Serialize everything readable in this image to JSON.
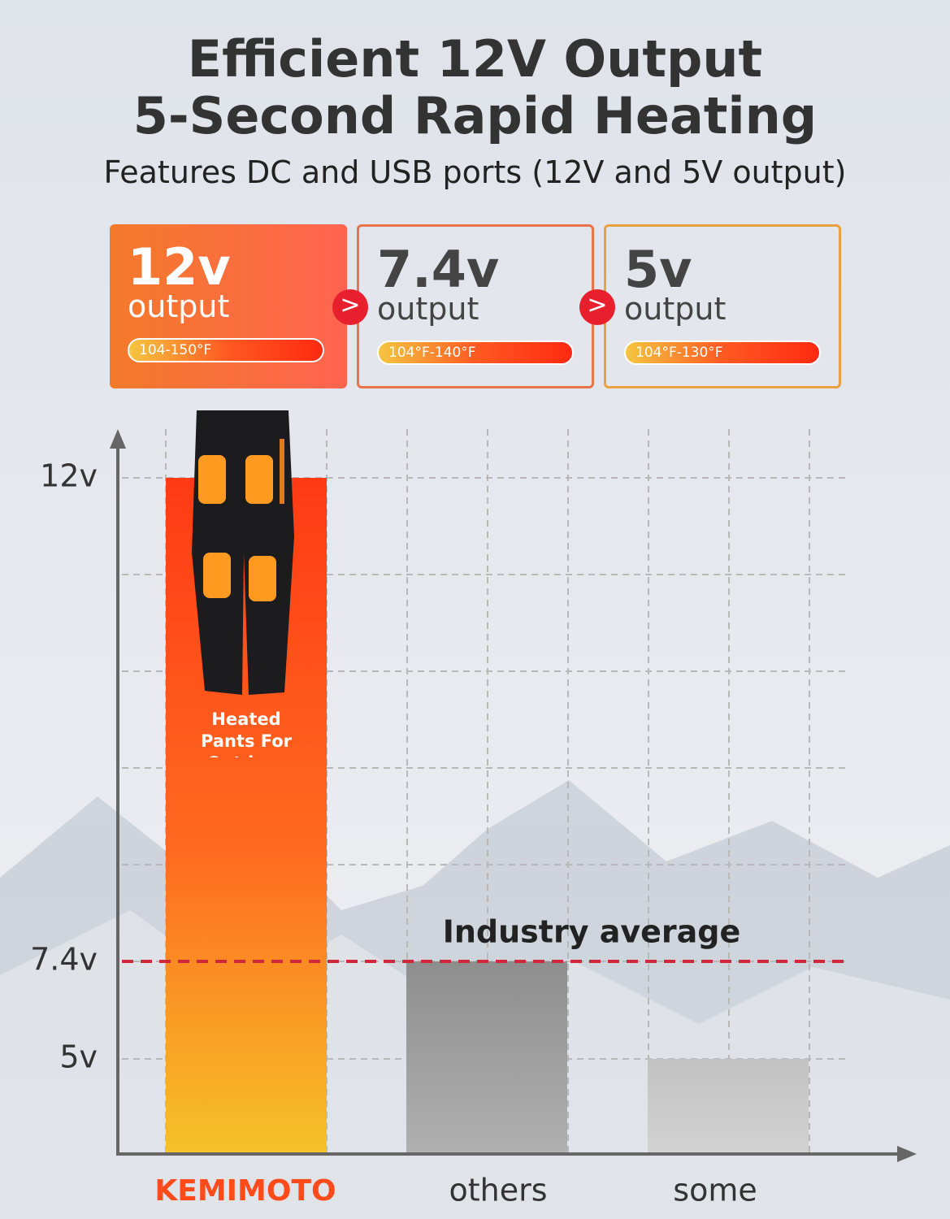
{
  "header": {
    "title_line1": "Efficient 12V Output",
    "title_line2": "5-Second Rapid Heating",
    "subtitle": "Features DC and USB ports (12V and 5V output)"
  },
  "cards": [
    {
      "voltage": "12v",
      "label": "output",
      "range": "104-150°F"
    },
    {
      "voltage": "7.4v",
      "label": "output",
      "range": "104°F-140°F"
    },
    {
      "voltage": "5v",
      "label": "output",
      "range": "104°F-130°F"
    }
  ],
  "chart_data": {
    "type": "bar",
    "categories": [
      "KEMIMOTO",
      "others",
      "some"
    ],
    "values": [
      12,
      7.4,
      5
    ],
    "colors": [
      "#ff4a1a",
      "#9a9a9a",
      "#c8c8c8"
    ],
    "ylim": [
      0,
      12
    ],
    "yticks": [
      {
        "value": 5,
        "label": "5v"
      },
      {
        "value": 7.4,
        "label": "7.4v"
      },
      {
        "value": 12,
        "label": "12v"
      }
    ],
    "bar_annotation": "Heated Pants For Outdoor",
    "reference_line": {
      "value": 7.4,
      "label": "Industry average",
      "color": "#d0283a"
    },
    "grid": true
  }
}
